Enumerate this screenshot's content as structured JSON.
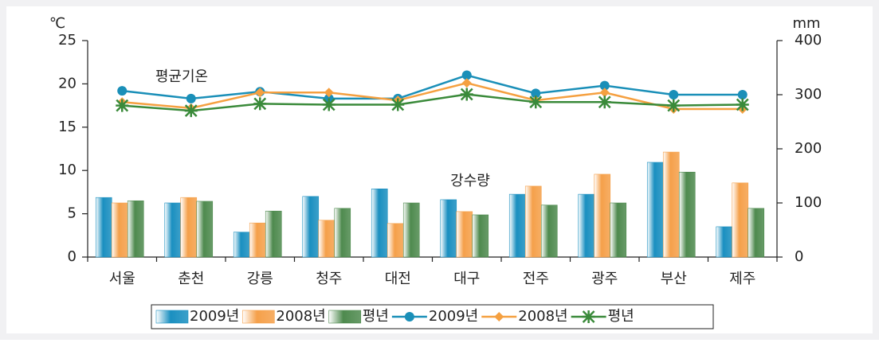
{
  "chart_data": {
    "type": "combo",
    "y_label": "℃",
    "y2_label": "mm",
    "annotations": [
      "평균기온",
      "강수량"
    ],
    "categories": [
      "서울",
      "춘천",
      "강릉",
      "청주",
      "대전",
      "대구",
      "전주",
      "광주",
      "부산",
      "제주"
    ],
    "ylim": [
      0,
      25
    ],
    "yticks": [
      0,
      5,
      10,
      15,
      20,
      25
    ],
    "y2lim": [
      0,
      400
    ],
    "y2ticks": [
      0,
      100,
      200,
      300,
      400
    ],
    "series": [
      {
        "name": "2009년",
        "kind": "bar",
        "axis": "y2",
        "color": "#1a8fc0",
        "values": [
          110,
          100,
          46,
          112,
          126,
          106,
          116,
          116,
          175,
          56
        ]
      },
      {
        "name": "2008년",
        "kind": "bar",
        "axis": "y2",
        "color": "#f5a04a",
        "values": [
          100,
          110,
          63,
          68,
          62,
          84,
          131,
          153,
          194,
          137
        ]
      },
      {
        "name": "평년",
        "kind": "bar",
        "axis": "y2",
        "color": "#4e8a4e",
        "values": [
          104,
          103,
          85,
          90,
          100,
          78,
          96,
          100,
          157,
          90
        ]
      },
      {
        "name": "2009년",
        "kind": "line",
        "marker": "circle",
        "color": "#1a8fb8",
        "values": [
          19.2,
          18.3,
          19.1,
          18.3,
          18.3,
          21.0,
          18.9,
          19.8,
          18.75,
          18.75
        ]
      },
      {
        "name": "2008년",
        "kind": "line",
        "marker": "diamond",
        "color": "#f5a040",
        "values": [
          17.9,
          17.2,
          19.0,
          19.0,
          18.1,
          20.1,
          18.1,
          19.0,
          17.1,
          17.1
        ]
      },
      {
        "name": "평년",
        "kind": "line",
        "marker": "star",
        "color": "#3a8a3a",
        "values": [
          17.5,
          16.9,
          17.7,
          17.6,
          17.6,
          18.8,
          17.9,
          17.9,
          17.5,
          17.6
        ]
      }
    ]
  }
}
